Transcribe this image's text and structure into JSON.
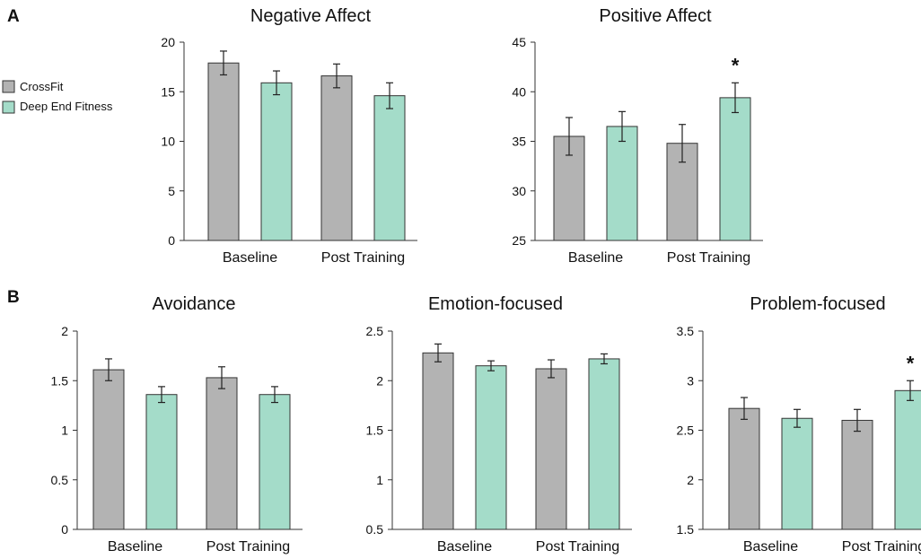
{
  "panel_labels": [
    "A",
    "B"
  ],
  "legend": [
    {
      "name": "CrossFit",
      "color": "#b3b3b3"
    },
    {
      "name": "Deep End Fitness",
      "color": "#a4dcc9"
    }
  ],
  "colors": {
    "crossfit": "#b3b3b3",
    "def": "#a4dcc9",
    "bar_stroke": "#333333"
  },
  "chart_data": [
    {
      "type": "bar",
      "title": "Negative Affect",
      "categories": [
        "Baseline",
        "Post Training"
      ],
      "series": [
        {
          "name": "CrossFit",
          "values": [
            17.9,
            16.6
          ],
          "errors": [
            1.2,
            1.2
          ]
        },
        {
          "name": "Deep End Fitness",
          "values": [
            15.9,
            14.6
          ],
          "errors": [
            1.2,
            1.3
          ]
        }
      ],
      "ylim": [
        0,
        20
      ],
      "yticks": [
        "0",
        "5",
        "10",
        "15",
        "20"
      ],
      "significance": [
        null,
        null
      ]
    },
    {
      "type": "bar",
      "title": "Positive Affect",
      "categories": [
        "Baseline",
        "Post Training"
      ],
      "series": [
        {
          "name": "CrossFit",
          "values": [
            35.5,
            34.8
          ],
          "errors": [
            1.9,
            1.9
          ]
        },
        {
          "name": "Deep End Fitness",
          "values": [
            36.5,
            39.4
          ],
          "errors": [
            1.5,
            1.5
          ]
        }
      ],
      "ylim": [
        25,
        45
      ],
      "yticks": [
        "25",
        "30",
        "35",
        "40",
        "45"
      ],
      "significance": [
        null,
        "*"
      ]
    },
    {
      "type": "bar",
      "title": "Avoidance",
      "categories": [
        "Baseline",
        "Post Training"
      ],
      "series": [
        {
          "name": "CrossFit",
          "values": [
            1.61,
            1.53
          ],
          "errors": [
            0.11,
            0.11
          ]
        },
        {
          "name": "Deep End Fitness",
          "values": [
            1.36,
            1.36
          ],
          "errors": [
            0.08,
            0.08
          ]
        }
      ],
      "ylim": [
        0,
        2
      ],
      "yticks": [
        "0",
        "0.5",
        "1",
        "1.5",
        "2"
      ],
      "significance": [
        null,
        null
      ]
    },
    {
      "type": "bar",
      "title": "Emotion-focused",
      "categories": [
        "Baseline",
        "Post Training"
      ],
      "series": [
        {
          "name": "CrossFit",
          "values": [
            2.28,
            2.12
          ],
          "errors": [
            0.09,
            0.09
          ]
        },
        {
          "name": "Deep End Fitness",
          "values": [
            2.15,
            2.22
          ],
          "errors": [
            0.05,
            0.05
          ]
        }
      ],
      "ylim": [
        0.5,
        2.5
      ],
      "yticks": [
        "0.5",
        "1",
        "1.5",
        "2",
        "2.5"
      ],
      "significance": [
        null,
        null
      ]
    },
    {
      "type": "bar",
      "title": "Problem-focused",
      "categories": [
        "Baseline",
        "Post Training"
      ],
      "series": [
        {
          "name": "CrossFit",
          "values": [
            2.72,
            2.6
          ],
          "errors": [
            0.11,
            0.11
          ]
        },
        {
          "name": "Deep End Fitness",
          "values": [
            2.62,
            2.9
          ],
          "errors": [
            0.09,
            0.1
          ]
        }
      ],
      "ylim": [
        1.5,
        3.5
      ],
      "yticks": [
        "1.5",
        "2",
        "2.5",
        "3",
        "3.5"
      ],
      "significance": [
        null,
        "*"
      ]
    }
  ]
}
